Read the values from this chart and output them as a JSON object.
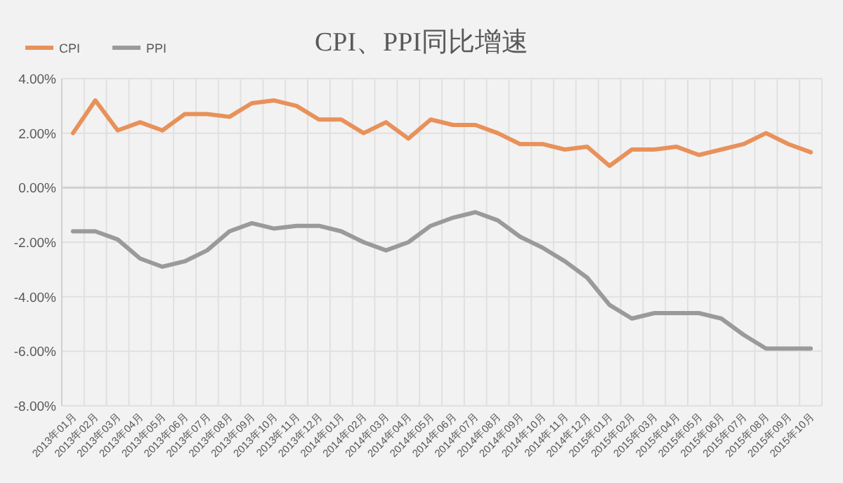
{
  "chart_data": {
    "type": "line",
    "title": "CPI、PPI同比增速",
    "categories": [
      "2013年01月",
      "2013年02月",
      "2013年03月",
      "2013年04月",
      "2013年05月",
      "2013年06月",
      "2013年07月",
      "2013年08月",
      "2013年09月",
      "2013年10月",
      "2013年11月",
      "2013年12月",
      "2014年01月",
      "2014年02月",
      "2014年03月",
      "2014年04月",
      "2014年05月",
      "2014年06月",
      "2014年07月",
      "2014年08月",
      "2014年09月",
      "2014年10月",
      "2014年11月",
      "2014年12月",
      "2015年01月",
      "2015年02月",
      "2015年03月",
      "2015年04月",
      "2015年05月",
      "2015年06月",
      "2015年07月",
      "2015年08月",
      "2015年09月",
      "2015年10月"
    ],
    "series": [
      {
        "name": "CPI",
        "color": "#e8915a",
        "values": [
          2.0,
          3.2,
          2.1,
          2.4,
          2.1,
          2.7,
          2.7,
          2.6,
          3.1,
          3.2,
          3.0,
          2.5,
          2.5,
          2.0,
          2.4,
          1.8,
          2.5,
          2.3,
          2.3,
          2.0,
          1.6,
          1.6,
          1.4,
          1.5,
          0.8,
          1.4,
          1.4,
          1.5,
          1.2,
          1.4,
          1.6,
          2.0,
          1.6,
          1.3
        ]
      },
      {
        "name": "PPI",
        "color": "#9a9a9a",
        "values": [
          -1.6,
          -1.6,
          -1.9,
          -2.6,
          -2.9,
          -2.7,
          -2.3,
          -1.6,
          -1.3,
          -1.5,
          -1.4,
          -1.4,
          -1.6,
          -2.0,
          -2.3,
          -2.0,
          -1.4,
          -1.1,
          -0.9,
          -1.2,
          -1.8,
          -2.2,
          -2.7,
          -3.3,
          -4.3,
          -4.8,
          -4.6,
          -4.6,
          -4.6,
          -4.8,
          -5.4,
          -5.9,
          -5.9,
          -5.9
        ]
      }
    ],
    "ylim": [
      -8,
      4
    ],
    "yticks": [
      {
        "value": -8,
        "label": "-8.00%"
      },
      {
        "value": -6,
        "label": "-6.00%"
      },
      {
        "value": -4,
        "label": "-4.00%"
      },
      {
        "value": -2,
        "label": "-2.00%"
      },
      {
        "value": 0,
        "label": "0.00%"
      },
      {
        "value": 2,
        "label": "2.00%"
      },
      {
        "value": 4,
        "label": "4.00%"
      }
    ],
    "grid": true,
    "legend": "top left",
    "line_style": "solid",
    "marker": "none"
  }
}
